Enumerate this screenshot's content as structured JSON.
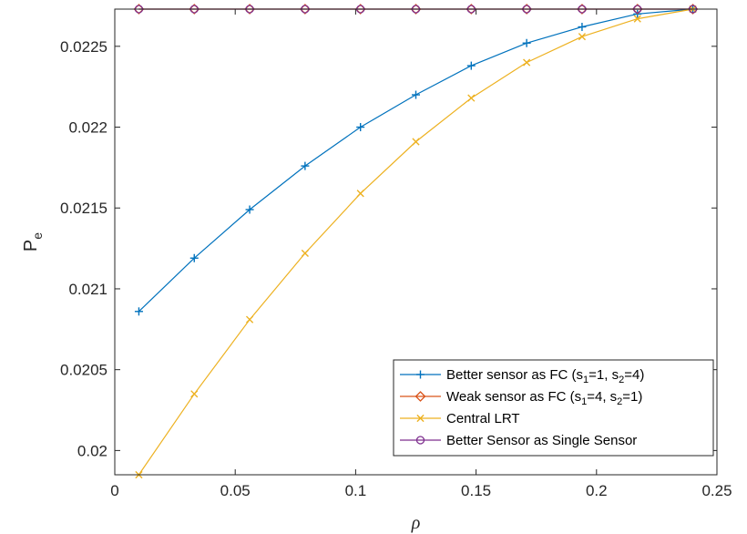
{
  "chart_data": {
    "type": "line",
    "title": "",
    "xlabel": "ρ",
    "ylabel": "P",
    "ylabel_subscript": "e",
    "xlim": [
      0,
      0.25
    ],
    "ylim": [
      0.01985,
      0.02273
    ],
    "xticks": [
      0,
      0.05,
      0.1,
      0.15,
      0.2,
      0.25
    ],
    "xtick_labels": [
      "0",
      "0.05",
      "0.1",
      "0.15",
      "0.2",
      "0.25"
    ],
    "yticks": [
      0.02,
      0.0205,
      0.021,
      0.0215,
      0.022,
      0.0225
    ],
    "ytick_labels": [
      "0.02",
      "0.0205",
      "0.021",
      "0.0215",
      "0.022",
      "0.0225"
    ],
    "grid": false,
    "legend_position": "bottom-right",
    "x": [
      0.01,
      0.033,
      0.056,
      0.079,
      0.102,
      0.125,
      0.148,
      0.171,
      0.194,
      0.217,
      0.24
    ],
    "series": [
      {
        "name": "Better sensor as FC (s1=1, s2=4)",
        "legend_parts": [
          [
            "Better sensor as FC (s",
            ""
          ],
          [
            "1",
            "sub"
          ],
          [
            "=1, s",
            ""
          ],
          [
            "2",
            "sub"
          ],
          [
            "=4)",
            ""
          ]
        ],
        "color": "#0072bd",
        "marker": "plus",
        "values": [
          0.02086,
          0.02119,
          0.02149,
          0.02176,
          0.022,
          0.0222,
          0.02238,
          0.02252,
          0.02262,
          0.0227,
          0.02273
        ]
      },
      {
        "name": "Weak sensor as FC (s1=4, s2=1)",
        "legend_parts": [
          [
            "Weak sensor as FC (s",
            ""
          ],
          [
            "1",
            "sub"
          ],
          [
            "=4, s",
            ""
          ],
          [
            "2",
            "sub"
          ],
          [
            "=1)",
            ""
          ]
        ],
        "color": "#d95319",
        "marker": "diamond",
        "values": [
          0.02273,
          0.02273,
          0.02273,
          0.02273,
          0.02273,
          0.02273,
          0.02273,
          0.02273,
          0.02273,
          0.02273,
          0.02273
        ]
      },
      {
        "name": "Central LRT",
        "legend_parts": [
          [
            "Central LRT",
            ""
          ]
        ],
        "color": "#edb120",
        "marker": "x",
        "values": [
          0.01985,
          0.02035,
          0.02081,
          0.02122,
          0.02159,
          0.02191,
          0.02218,
          0.0224,
          0.02256,
          0.02267,
          0.02273
        ]
      },
      {
        "name": "Better Sensor as Single Sensor",
        "legend_parts": [
          [
            "Better Sensor as Single Sensor",
            ""
          ]
        ],
        "color": "#7e2f8e",
        "marker": "circle",
        "values": [
          0.02273,
          0.02273,
          0.02273,
          0.02273,
          0.02273,
          0.02273,
          0.02273,
          0.02273,
          0.02273,
          0.02273,
          0.02273
        ]
      }
    ]
  }
}
